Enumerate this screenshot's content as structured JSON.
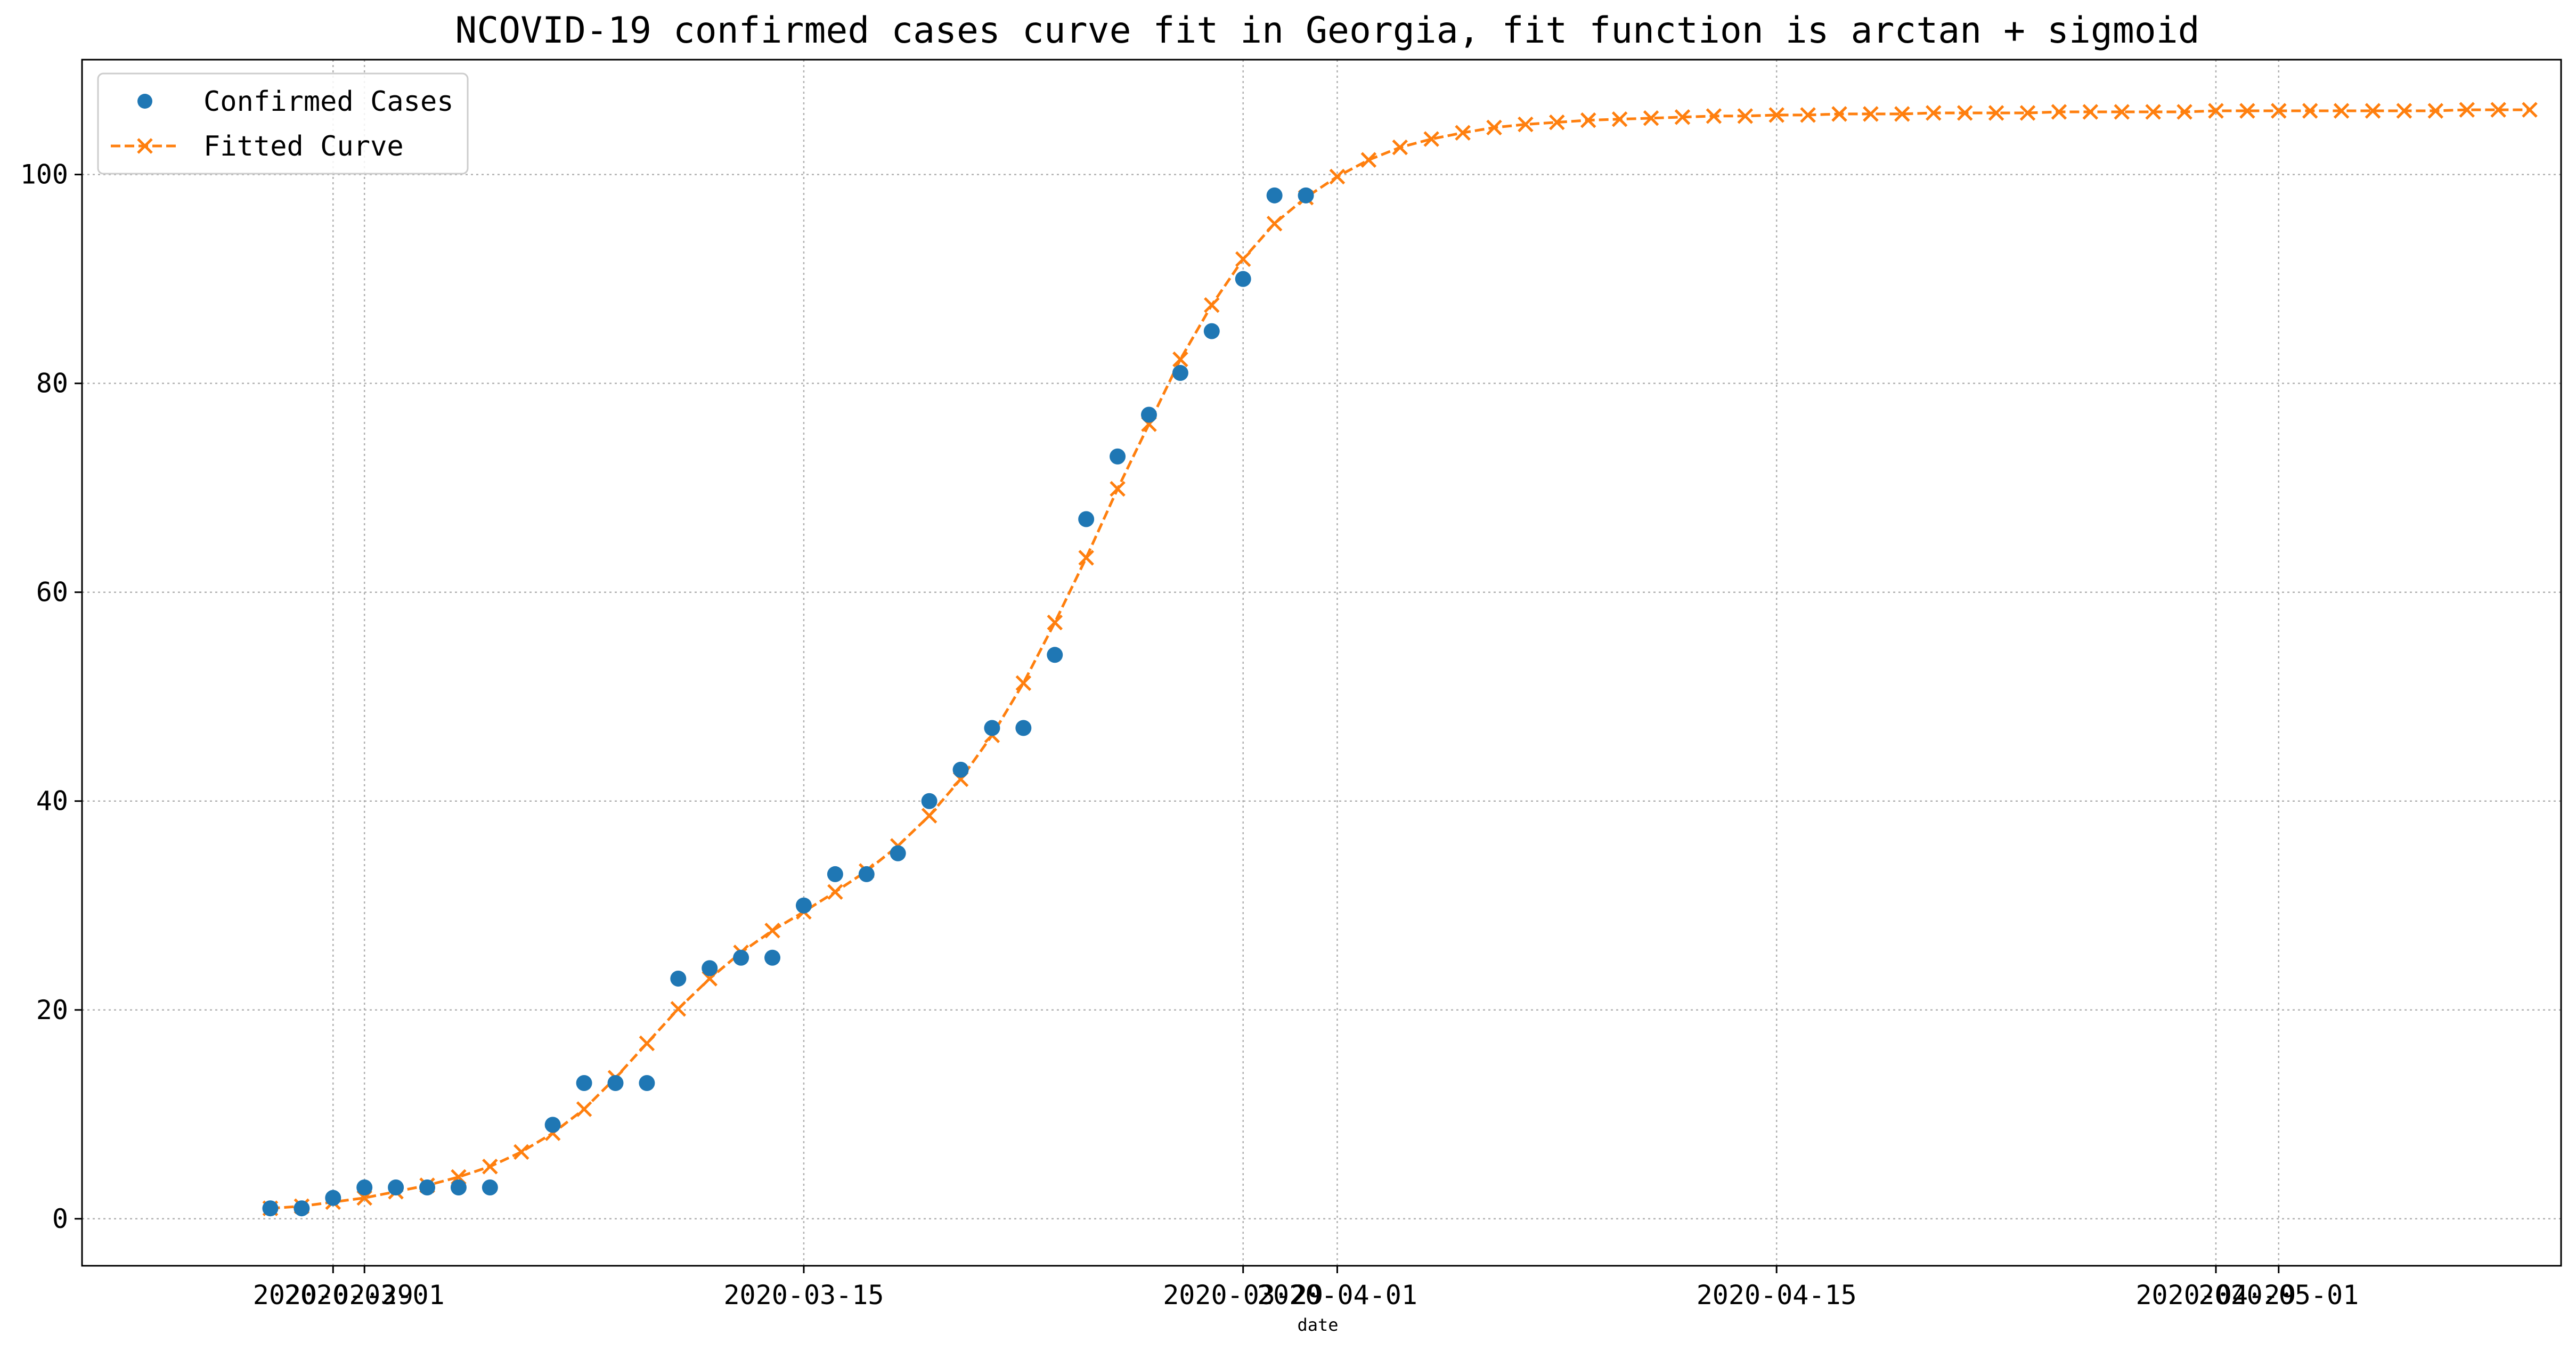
{
  "chart_data": {
    "type": "line",
    "title": "NCOVID-19 confirmed cases curve fit in Georgia, fit function is arctan + sigmoid",
    "xlabel": "date",
    "ylabel": "",
    "xlim": [
      "2020-02-21",
      "2020-05-10"
    ],
    "ylim": [
      -4.5,
      111
    ],
    "grid": true,
    "legend_position": "top-left",
    "x_ticks": [
      "2020-02-29",
      "2020-03-01",
      "2020-03-15",
      "2020-03-29",
      "2020-04-01",
      "2020-04-15",
      "2020-04-29",
      "2020-05-01"
    ],
    "x_tick_labels": [
      "2020-02-29",
      "2020-03-01",
      "2020-03-15",
      "2020-03-29",
      "2020-04-01",
      "2020-04-15",
      "2020-04-29",
      "2020-05-01"
    ],
    "y_ticks": [
      0,
      20,
      40,
      60,
      80,
      100
    ],
    "series": [
      {
        "name": "Confirmed Cases",
        "style": "markers",
        "marker": "circle",
        "color": "#1f77b4",
        "x": [
          "2020-02-27",
          "2020-02-28",
          "2020-02-29",
          "2020-03-01",
          "2020-03-02",
          "2020-03-03",
          "2020-03-04",
          "2020-03-05",
          "2020-03-07",
          "2020-03-08",
          "2020-03-09",
          "2020-03-10",
          "2020-03-11",
          "2020-03-12",
          "2020-03-13",
          "2020-03-14",
          "2020-03-15",
          "2020-03-16",
          "2020-03-17",
          "2020-03-18",
          "2020-03-19",
          "2020-03-20",
          "2020-03-21",
          "2020-03-22",
          "2020-03-23",
          "2020-03-24",
          "2020-03-25",
          "2020-03-26",
          "2020-03-27",
          "2020-03-28",
          "2020-03-29",
          "2020-03-30",
          "2020-03-31"
        ],
        "y": [
          1,
          1,
          2,
          3,
          3,
          3,
          3,
          3,
          9,
          13,
          13,
          13,
          23,
          24,
          25,
          25,
          30,
          33,
          33,
          35,
          40,
          43,
          47,
          47,
          54,
          67,
          73,
          77,
          81,
          85,
          90,
          98,
          98
        ]
      },
      {
        "name": "Fitted Curve",
        "style": "dashed-line-with-x-markers",
        "marker": "x",
        "color": "#ff7f0e",
        "x": [
          "2020-02-27",
          "2020-02-28",
          "2020-02-29",
          "2020-03-01",
          "2020-03-02",
          "2020-03-03",
          "2020-03-04",
          "2020-03-05",
          "2020-03-06",
          "2020-03-07",
          "2020-03-08",
          "2020-03-09",
          "2020-03-10",
          "2020-03-11",
          "2020-03-12",
          "2020-03-13",
          "2020-03-14",
          "2020-03-15",
          "2020-03-16",
          "2020-03-17",
          "2020-03-18",
          "2020-03-19",
          "2020-03-20",
          "2020-03-21",
          "2020-03-22",
          "2020-03-23",
          "2020-03-24",
          "2020-03-25",
          "2020-03-26",
          "2020-03-27",
          "2020-03-28",
          "2020-03-29",
          "2020-03-30",
          "2020-03-31",
          "2020-04-01",
          "2020-04-02",
          "2020-04-03",
          "2020-04-04",
          "2020-04-05",
          "2020-04-06",
          "2020-04-07",
          "2020-04-08",
          "2020-04-09",
          "2020-04-10",
          "2020-04-11",
          "2020-04-12",
          "2020-04-13",
          "2020-04-14",
          "2020-04-15",
          "2020-04-16",
          "2020-04-17",
          "2020-04-18",
          "2020-04-19",
          "2020-04-20",
          "2020-04-21",
          "2020-04-22",
          "2020-04-23",
          "2020-04-24",
          "2020-04-25",
          "2020-04-26",
          "2020-04-27",
          "2020-04-28",
          "2020-04-29",
          "2020-04-30",
          "2020-05-01",
          "2020-05-02",
          "2020-05-03",
          "2020-05-04",
          "2020-05-05",
          "2020-05-06",
          "2020-05-07",
          "2020-05-08",
          "2020-05-09"
        ],
        "y": [
          1.0,
          1.2,
          1.6,
          2.0,
          2.6,
          3.2,
          4.0,
          5.0,
          6.4,
          8.2,
          10.5,
          13.5,
          16.8,
          20.1,
          23.0,
          25.5,
          27.6,
          29.4,
          31.3,
          33.3,
          35.7,
          38.6,
          42.1,
          46.3,
          51.3,
          57.1,
          63.3,
          69.9,
          76.1,
          82.3,
          87.5,
          91.9,
          95.3,
          97.8,
          99.8,
          101.4,
          102.6,
          103.4,
          104.0,
          104.5,
          104.8,
          105.0,
          105.2,
          105.3,
          105.4,
          105.5,
          105.6,
          105.6,
          105.7,
          105.7,
          105.8,
          105.8,
          105.8,
          105.9,
          105.9,
          105.9,
          105.9,
          106.0,
          106.0,
          106.0,
          106.0,
          106.0,
          106.1,
          106.1,
          106.1,
          106.1,
          106.1,
          106.1,
          106.1,
          106.1,
          106.2,
          106.2,
          106.2
        ]
      }
    ]
  }
}
